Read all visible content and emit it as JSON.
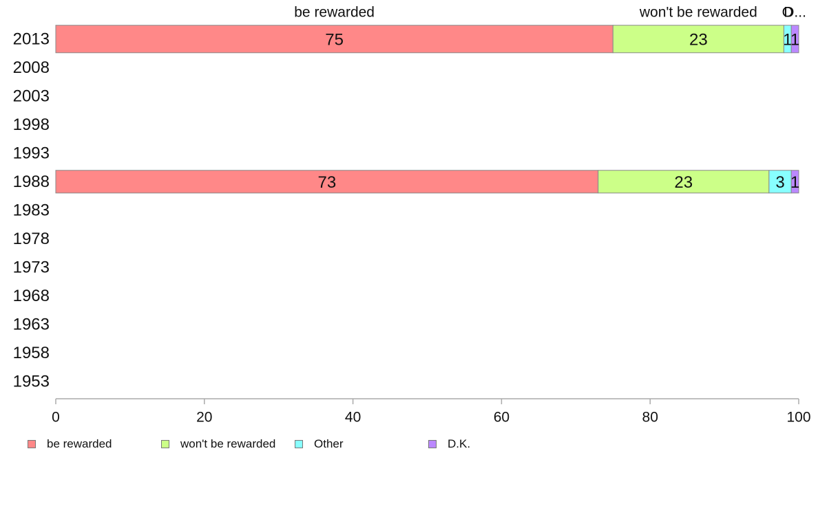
{
  "chart_data": {
    "type": "bar",
    "orientation": "horizontal",
    "stacked": true,
    "categories": [
      "2013",
      "2008",
      "2003",
      "1998",
      "1993",
      "1988",
      "1983",
      "1978",
      "1973",
      "1968",
      "1963",
      "1958",
      "1953"
    ],
    "series": [
      {
        "name": "be rewarded",
        "color": "#ff8888",
        "values": [
          75,
          null,
          null,
          null,
          null,
          73,
          null,
          null,
          null,
          null,
          null,
          null,
          null
        ]
      },
      {
        "name": "won't be rewarded",
        "color": "#ccff88",
        "values": [
          23,
          null,
          null,
          null,
          null,
          23,
          null,
          null,
          null,
          null,
          null,
          null,
          null
        ]
      },
      {
        "name": "Other",
        "color": "#88ffff",
        "values": [
          1,
          null,
          null,
          null,
          null,
          3,
          null,
          null,
          null,
          null,
          null,
          null,
          null
        ]
      },
      {
        "name": "D.K.",
        "color": "#bb88ff",
        "values": [
          1,
          null,
          null,
          null,
          null,
          1,
          null,
          null,
          null,
          null,
          null,
          null,
          null
        ]
      }
    ],
    "top_labels": [
      "be rewarded",
      "won't be rewarded",
      "O",
      "D..."
    ],
    "xlim": [
      0,
      100
    ],
    "xticks": [
      0,
      20,
      40,
      60,
      80,
      100
    ],
    "grid": false,
    "legend": "bottom-left"
  }
}
